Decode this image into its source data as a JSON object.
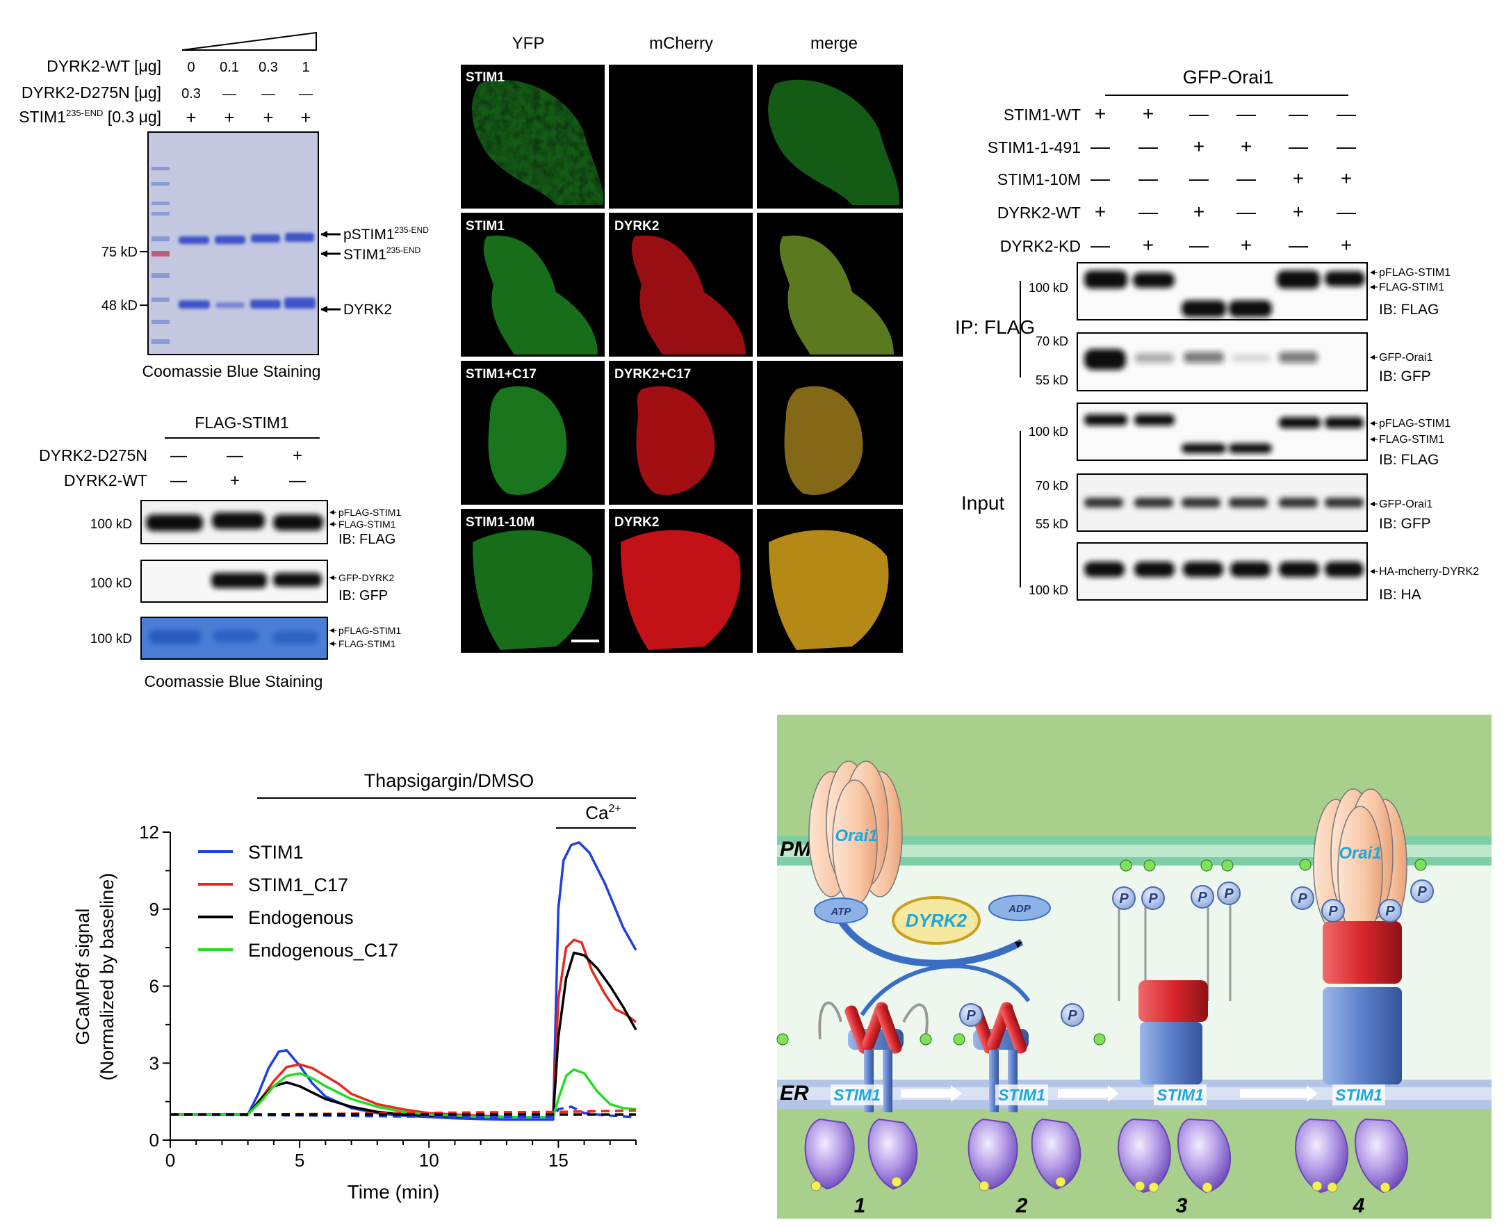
{
  "panel_a": {
    "row_labels": [
      "DYRK2-WT [μg]",
      "DYRK2-D275N [μg]",
      "STIM1"
    ],
    "stim1_superscript": "235-END",
    "stim1_suffix": " [0.3 μg]",
    "dyrk2_wt_values": [
      "0",
      "0.1",
      "0.3",
      "1"
    ],
    "dyrk2_d275n_values": [
      "0.3",
      "—",
      "—",
      "—"
    ],
    "stim1_values": [
      "+",
      "+",
      "+",
      "+"
    ],
    "mw_markers": [
      "75 kD",
      "48 kD"
    ],
    "bands": [
      {
        "main": "pSTIM1",
        "sup": "235-END"
      },
      {
        "main": "STIM1",
        "sup": "235-END"
      },
      {
        "main": "DYRK2",
        "sup": ""
      }
    ],
    "caption": "Coomassie Blue Staining"
  },
  "panel_b": {
    "header": "FLAG-STIM1",
    "row_labels": [
      "DYRK2-D275N",
      "DYRK2-WT"
    ],
    "d275n_values": [
      "—",
      "—",
      "+"
    ],
    "wt_values": [
      "—",
      "+",
      "—"
    ],
    "blots": [
      {
        "mw": "100 kD",
        "labels": [
          "pFLAG-STIM1",
          "FLAG-STIM1"
        ],
        "ib": "IB: FLAG"
      },
      {
        "mw": "100 kD",
        "labels": [
          "GFP-DYRK2"
        ],
        "ib": "IB: GFP"
      },
      {
        "mw": "100 kD",
        "labels": [
          "pFLAG-STIM1",
          "FLAG-STIM1"
        ],
        "ib": ""
      }
    ],
    "caption": "Coomassie Blue Staining"
  },
  "panel_c": {
    "column_titles": [
      "YFP",
      "mCherry",
      "merge"
    ],
    "rows": [
      {
        "yfp": "STIM1",
        "mcherry": ""
      },
      {
        "yfp": "STIM1",
        "mcherry": "DYRK2"
      },
      {
        "yfp": "STIM1+C17",
        "mcherry": "DYRK2+C17"
      },
      {
        "yfp": "STIM1-10M",
        "mcherry": "DYRK2"
      }
    ]
  },
  "panel_d": {
    "header": "GFP-Orai1",
    "conditions": [
      {
        "label": "STIM1-WT",
        "values": [
          "+",
          "+",
          "—",
          "—",
          "—",
          "—"
        ]
      },
      {
        "label": "STIM1-1-491",
        "values": [
          "—",
          "—",
          "+",
          "+",
          "—",
          "—"
        ]
      },
      {
        "label": "STIM1-10M",
        "values": [
          "—",
          "—",
          "—",
          "—",
          "+",
          "+"
        ]
      },
      {
        "label": "DYRK2-WT",
        "values": [
          "+",
          "—",
          "+",
          "—",
          "+",
          "—"
        ]
      },
      {
        "label": "DYRK2-KD",
        "values": [
          "—",
          "+",
          "—",
          "+",
          "—",
          "+"
        ]
      }
    ],
    "group_ip": "IP: FLAG",
    "group_input": "Input",
    "blots": [
      {
        "mw": [
          "100 kD"
        ],
        "labels": [
          "pFLAG-STIM1",
          "FLAG-STIM1"
        ],
        "ib": "IB: FLAG"
      },
      {
        "mw": [
          "70 kD",
          "55 kD"
        ],
        "labels": [
          "GFP-Orai1"
        ],
        "ib": "IB: GFP"
      },
      {
        "mw": [
          "100 kD"
        ],
        "labels": [
          "pFLAG-STIM1",
          "FLAG-STIM1"
        ],
        "ib": "IB: FLAG"
      },
      {
        "mw": [
          "70 kD",
          "55 kD"
        ],
        "labels": [
          "GFP-Orai1"
        ],
        "ib": "IB: GFP"
      },
      {
        "mw": [
          "100 kD"
        ],
        "labels": [
          "HA-mcherry-DYRK2"
        ],
        "ib": "IB: HA"
      }
    ]
  },
  "chart_data": {
    "type": "line",
    "title": "Thapsigargin/DMSO",
    "annotation": {
      "main": "Ca",
      "sup": "2+"
    },
    "xlabel": "Time (min)",
    "ylabel_lines": [
      "GCaMP6f signal",
      "(Normalized by baseline)"
    ],
    "xlim": [
      0,
      18
    ],
    "ylim": [
      0,
      12
    ],
    "xticks": [
      0,
      5,
      10,
      15
    ],
    "yticks": [
      0,
      3,
      6,
      9,
      12
    ],
    "series": [
      {
        "name": "STIM1",
        "color": "#1f3fe0",
        "x": [
          0,
          3,
          3.4,
          3.8,
          4.2,
          4.5,
          5,
          5.5,
          6,
          7,
          8,
          9,
          10,
          11,
          12,
          13,
          14,
          14.8,
          15,
          15.2,
          15.5,
          15.8,
          16.2,
          16.8,
          17.5,
          18
        ],
        "y": [
          1,
          1,
          1.8,
          2.8,
          3.45,
          3.5,
          2.9,
          2.2,
          1.7,
          1.25,
          1.05,
          0.95,
          0.9,
          0.85,
          0.82,
          0.8,
          0.8,
          0.8,
          9,
          10.9,
          11.5,
          11.6,
          11.2,
          10.0,
          8.3,
          7.4
        ]
      },
      {
        "name": "STIM1_C17",
        "color": "#e8281e",
        "x": [
          0,
          3,
          3.5,
          4,
          4.5,
          5,
          5.5,
          6,
          6.5,
          7,
          8,
          9,
          10,
          11,
          12,
          13,
          14,
          14.8,
          15,
          15.3,
          15.6,
          15.9,
          16.3,
          16.8,
          17.2,
          17.6,
          18
        ],
        "y": [
          1,
          1,
          1.6,
          2.3,
          2.85,
          2.95,
          2.8,
          2.5,
          2.2,
          1.8,
          1.4,
          1.2,
          1.05,
          1.0,
          0.95,
          0.9,
          0.9,
          0.9,
          5.5,
          7.5,
          7.8,
          7.7,
          6.6,
          5.7,
          5.1,
          4.9,
          4.6
        ]
      },
      {
        "name": "Endogenous",
        "color": "#000000",
        "x": [
          0,
          3,
          3.5,
          4,
          4.5,
          5,
          5.5,
          6,
          7,
          8,
          9,
          10,
          11,
          12,
          13,
          14,
          14.8,
          15,
          15.3,
          15.6,
          16,
          16.5,
          17,
          17.5,
          18
        ],
        "y": [
          1,
          1,
          1.6,
          2.1,
          2.25,
          2.1,
          1.85,
          1.6,
          1.3,
          1.1,
          1.0,
          0.95,
          0.92,
          0.9,
          0.9,
          0.9,
          0.9,
          4,
          6.3,
          7.3,
          7.2,
          6.7,
          6.0,
          5.2,
          4.3
        ]
      },
      {
        "name": "Endogenous_C17",
        "color": "#22dd22",
        "x": [
          0,
          3,
          3.5,
          4,
          4.5,
          5,
          5.5,
          6,
          7,
          8,
          9,
          10,
          11,
          12,
          13,
          14,
          14.8,
          15,
          15.3,
          15.6,
          16,
          16.5,
          17,
          17.5,
          18
        ],
        "y": [
          1,
          1,
          1.5,
          2.1,
          2.5,
          2.6,
          2.4,
          2.1,
          1.6,
          1.3,
          1.1,
          1.0,
          0.95,
          0.9,
          0.9,
          0.9,
          0.9,
          1.6,
          2.5,
          2.75,
          2.6,
          1.9,
          1.4,
          1.25,
          1.2
        ]
      },
      {
        "name": "",
        "color": "#1f3fe0",
        "dashed": true,
        "x": [
          0,
          3,
          6,
          9,
          12,
          14.8,
          15,
          15.5,
          16,
          17,
          18
        ],
        "y": [
          1,
          0.98,
          0.95,
          0.92,
          0.9,
          0.9,
          1.2,
          1.3,
          1.05,
          0.95,
          0.9
        ]
      },
      {
        "name": "",
        "color": "#e8281e",
        "dashed": true,
        "x": [
          0,
          3,
          6,
          9,
          12,
          15,
          18
        ],
        "y": [
          1,
          1,
          1.02,
          1.05,
          1.08,
          1.1,
          1.15
        ]
      },
      {
        "name": "",
        "color": "#000000",
        "dashed": true,
        "x": [
          0,
          3,
          6,
          9,
          12,
          15,
          18
        ],
        "y": [
          1,
          1,
          1.0,
          1.0,
          1.0,
          1.0,
          1.0
        ]
      }
    ]
  },
  "panel_f": {
    "membrane_labels": [
      "PM",
      "ER"
    ],
    "protein_labels": [
      "Orai1",
      "DYRK2",
      "STIM1",
      "ATP",
      "ADP",
      "P"
    ],
    "steps": [
      "1",
      "2",
      "3",
      "4"
    ]
  },
  "colors": {
    "gel_bg": "#c3c7e0",
    "gel_band": "#3f55c8",
    "coomassie_bg": "#4b7fd6",
    "yfp": "#27b52b",
    "mcherry": "#d8141a",
    "cytosol": "#eef7ee",
    "model_bg": "#a8d08c",
    "stim_blue": "#5c80c9",
    "stim_red": "#d9262c",
    "dyrk2_fill": "#f6e8a0",
    "orai": "#f6c8a8",
    "lumen_protein": "#8a6ac9",
    "label_cyan": "#18a8e0"
  }
}
